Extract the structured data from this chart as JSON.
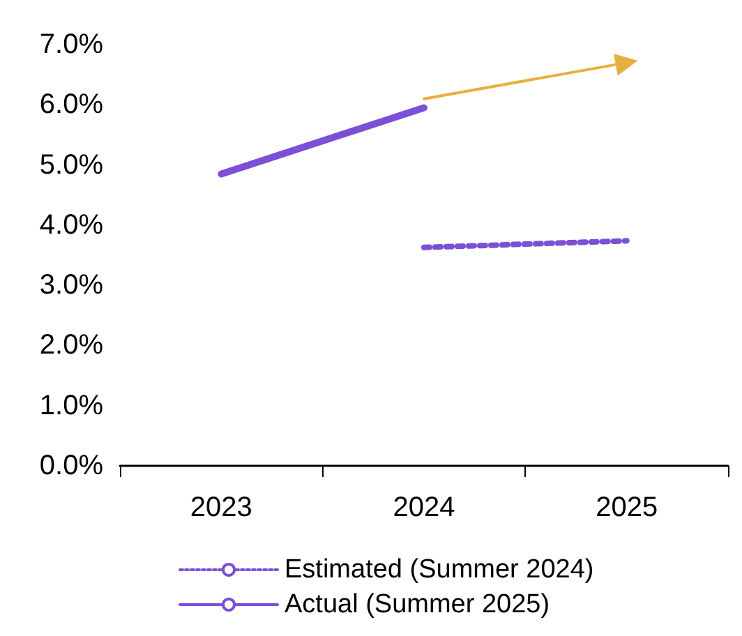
{
  "chart_data": {
    "type": "line",
    "categories": [
      "2023",
      "2024",
      "2025"
    ],
    "series": [
      {
        "name": "Estimated (Summer 2024)",
        "color": "#7b4fd6",
        "values": [
          null,
          3.63,
          3.74
        ],
        "line_style": "dotted"
      },
      {
        "name": "Actual (Summer 2025)",
        "color": "#7b4fd6",
        "values": [
          4.85,
          5.95,
          null
        ],
        "line_style": "solid"
      },
      {
        "color": "#e6b040",
        "values": [
          null,
          6.1,
          6.7
        ],
        "line_style": "solid",
        "marker": "triangle"
      }
    ],
    "ylim": [
      0,
      7
    ],
    "yticks": [
      {
        "value": 0,
        "label": "0.0%"
      },
      {
        "value": 1,
        "label": "1.0%"
      },
      {
        "value": 2,
        "label": "2.0%"
      },
      {
        "value": 3,
        "label": "3.0%"
      },
      {
        "value": 4,
        "label": "4.0%"
      },
      {
        "value": 5,
        "label": "5.0%"
      },
      {
        "value": 6,
        "label": "6.0%"
      },
      {
        "value": 7,
        "label": "7.0%"
      }
    ],
    "grid": false,
    "legend": "bottom"
  }
}
